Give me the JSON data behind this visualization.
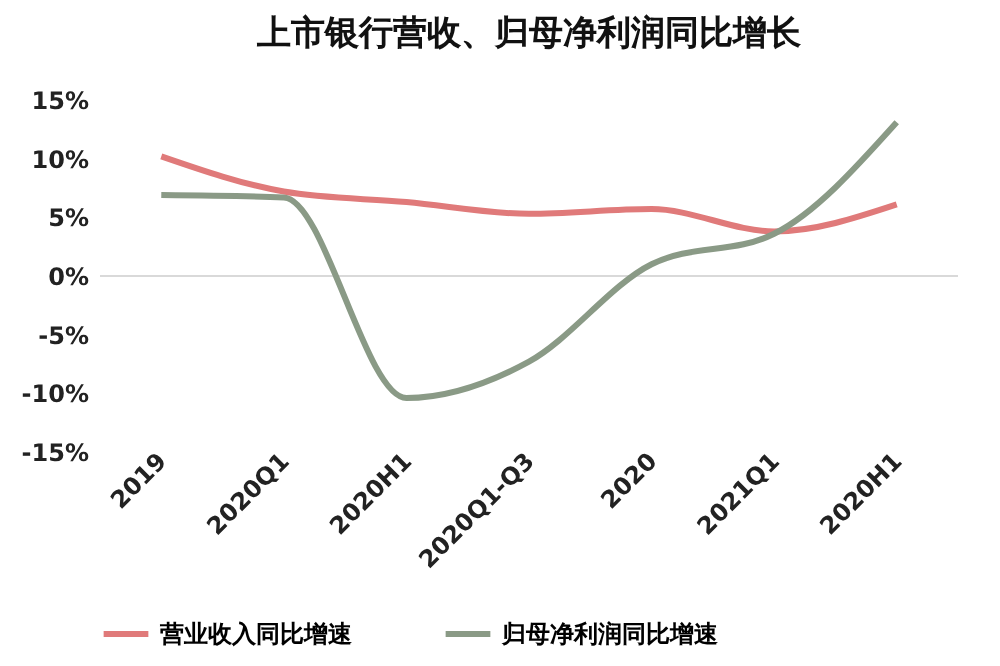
{
  "chart_data": {
    "type": "line",
    "title": "上市银行营收、归母净利润同比增长",
    "categories": [
      "2019",
      "2020Q1",
      "2020H1",
      "2020Q1-Q3",
      "2020",
      "2021Q1",
      "2020H1"
    ],
    "series": [
      {
        "name": "营业收入同比增速",
        "color": "#e07a7a",
        "values": [
          10.2,
          7.2,
          6.3,
          5.3,
          5.7,
          3.8,
          6.1
        ]
      },
      {
        "name": "归母净利润同比增速",
        "color": "#8a9a86",
        "values": [
          6.9,
          6.7,
          -10.4,
          -7.3,
          1.0,
          3.6,
          13.1
        ]
      }
    ],
    "ylim": [
      -15,
      15
    ],
    "yticks": [
      {
        "value": -15,
        "label": "-15%"
      },
      {
        "value": -10,
        "label": "-10%"
      },
      {
        "value": -5,
        "label": "-5%"
      },
      {
        "value": 0,
        "label": "0%"
      },
      {
        "value": 5,
        "label": "5%"
      },
      {
        "value": 10,
        "label": "10%"
      },
      {
        "value": 15,
        "label": "15%"
      }
    ],
    "ref_lines": [
      {
        "axis": "y",
        "value": 0,
        "color": "#d9d9d9"
      }
    ],
    "grid": false,
    "legend": "bottom",
    "line_style": "solid",
    "marker": "none"
  }
}
